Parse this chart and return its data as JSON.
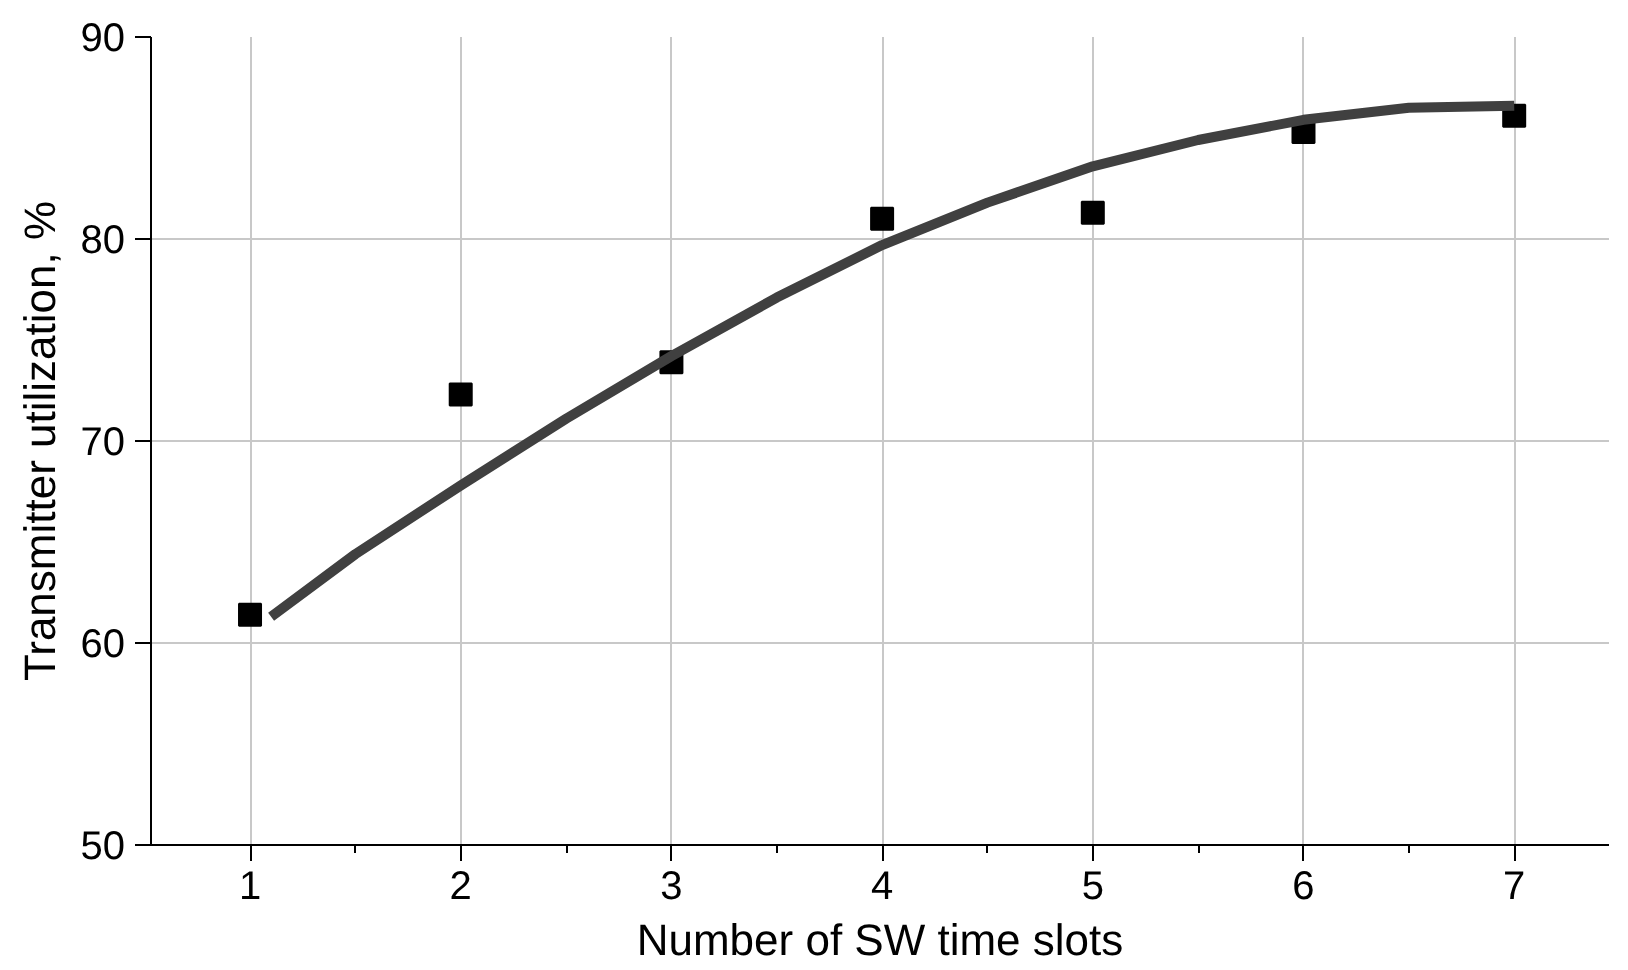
{
  "chart_data": {
    "type": "scatter",
    "xlabel": "Number of SW time slots",
    "ylabel": "Transmitter utilization, %",
    "x": [
      1,
      2,
      3,
      4,
      5,
      6,
      7
    ],
    "series": [
      {
        "color": "#000000",
        "marker": "square",
        "values": [
          61.4,
          72.3,
          73.9,
          81.0,
          81.3,
          85.3,
          86.1
        ]
      },
      {
        "type": "line",
        "color": "#404040",
        "marker": "none",
        "line_style": "solid",
        "x": [
          1.1,
          1.5,
          2,
          2.5,
          3,
          3.5,
          4,
          4.5,
          5,
          5.5,
          6,
          6.5,
          7
        ],
        "values": [
          61.3,
          64.4,
          67.8,
          71.1,
          74.2,
          77.1,
          79.7,
          81.8,
          83.6,
          84.9,
          85.9,
          86.5,
          86.6
        ]
      }
    ],
    "xlim": [
      0.53,
      7.45
    ],
    "ylim": [
      50,
      90
    ],
    "xticks": [
      1,
      2,
      3,
      4,
      5,
      6,
      7,
      {
        "value": 1.5,
        "label": null
      },
      {
        "value": 2.5,
        "label": null
      },
      {
        "value": 3.5,
        "label": null
      },
      {
        "value": 4.5,
        "label": null
      },
      {
        "value": 5.5,
        "label": null
      },
      {
        "value": 6.5,
        "label": null
      }
    ],
    "yticks": [
      50,
      60,
      70,
      80,
      90
    ],
    "grid": true
  }
}
